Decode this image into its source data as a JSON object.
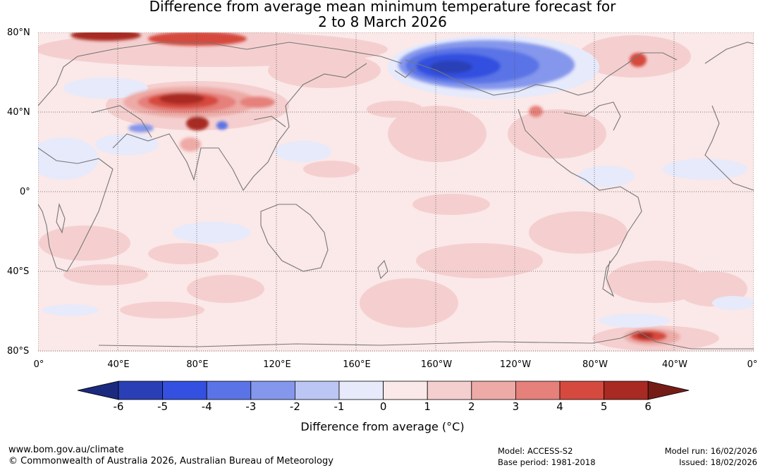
{
  "title_line1": "Difference from average mean minimum temperature forecast for",
  "title_line2": "2 to 8 March 2026",
  "lat_labels": [
    "80°N",
    "40°N",
    "0°",
    "40°S",
    "80°S"
  ],
  "lon_labels": [
    "0°",
    "40°E",
    "80°E",
    "120°E",
    "160°E",
    "160°W",
    "120°W",
    "80°W",
    "40°W",
    "0°"
  ],
  "colorbar": {
    "ticks": [
      "-6",
      "-5",
      "-4",
      "-3",
      "-2",
      "-1",
      "0",
      "1",
      "2",
      "3",
      "4",
      "5",
      "6"
    ],
    "colors": [
      "#1b2a7e",
      "#2a3fb6",
      "#3350e0",
      "#5a73e6",
      "#8597ec",
      "#bcc6f4",
      "#e6eafb",
      "#fbe8e8",
      "#f5cfcf",
      "#edaaa6",
      "#e5807a",
      "#d6493e",
      "#a82a22",
      "#751c17"
    ],
    "label": "Difference from average (°C)"
  },
  "footer": {
    "website": "www.bom.gov.au/climate",
    "copyright": "© Commonwealth of Australia 2026, Australian Bureau of Meteorology",
    "model": "Model: ACCESS-S2",
    "base_period": "Base period: 1981-2018",
    "model_run": "Model run: 16/02/2026",
    "issued": "Issued: 18/02/2026"
  },
  "colors": {
    "base": "#fbe8e8",
    "coast": "#777777",
    "grid": "#555555"
  }
}
